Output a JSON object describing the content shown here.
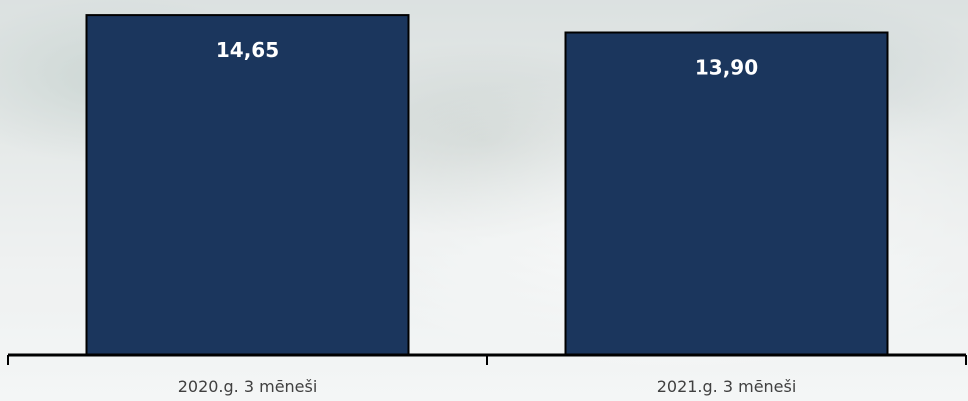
{
  "chart_data": {
    "type": "bar",
    "categories": [
      "2020.g. 3 mēneši",
      "2021.g. 3 mēneši"
    ],
    "values": [
      14.65,
      13.9
    ],
    "value_labels": [
      "14,65",
      "13,90"
    ],
    "title": "",
    "xlabel": "",
    "ylabel": "",
    "ylim": [
      0,
      15.3
    ],
    "grid": false,
    "legend": "none",
    "colors": {
      "bar": "#1b365d",
      "bar_border": "#000000",
      "data_label": "#ffffff",
      "tick_label": "#404040"
    }
  }
}
